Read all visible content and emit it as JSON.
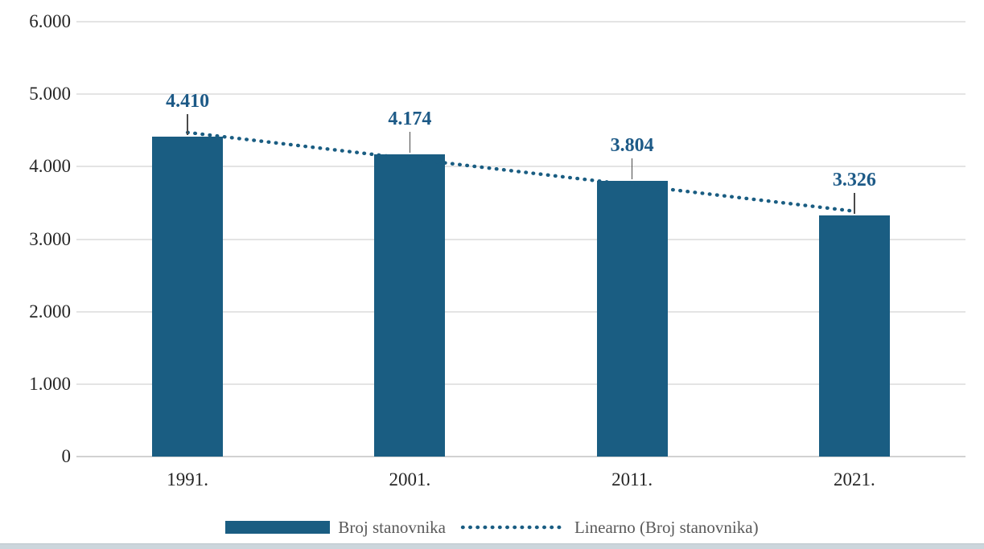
{
  "chart_data": {
    "type": "bar",
    "title": "",
    "xlabel": "",
    "ylabel": "",
    "categories": [
      "1991.",
      "2001.",
      "2011.",
      "2021."
    ],
    "values": [
      4410,
      4174,
      3804,
      3326
    ],
    "value_labels": [
      "4.410",
      "4.174",
      "3.804",
      "3.326"
    ],
    "y_ticks": [
      0,
      1000,
      2000,
      3000,
      4000,
      5000,
      6000
    ],
    "y_tick_labels": [
      "0",
      "1.000",
      "2.000",
      "3.000",
      "4.000",
      "5.000",
      "6.000"
    ],
    "ylim": [
      0,
      6000
    ],
    "grid": true,
    "legend_position": "bottom",
    "series": [
      {
        "name": "Broj stanovnika",
        "type": "bar",
        "values": [
          4410,
          4174,
          3804,
          3326
        ]
      },
      {
        "name": "Linearno (Broj stanovnika)",
        "type": "linear-trendline"
      }
    ]
  },
  "legend": {
    "items": [
      {
        "label": "Broj stanovnika",
        "marker": "bar-swatch"
      },
      {
        "label": "Linearno (Broj stanovnika)",
        "marker": "dotted-line"
      }
    ]
  },
  "colors": {
    "bar": "#1a5d82",
    "trendline": "#1a5d82",
    "data_label": "#1d5a87",
    "axis_text": "#262626",
    "legend_text": "#595959",
    "gridline": "#e4e4e4",
    "axis_line": "#d2d2d2",
    "leader_line": "#4a4a4a",
    "bottom_strip": "#ccd6dc"
  }
}
